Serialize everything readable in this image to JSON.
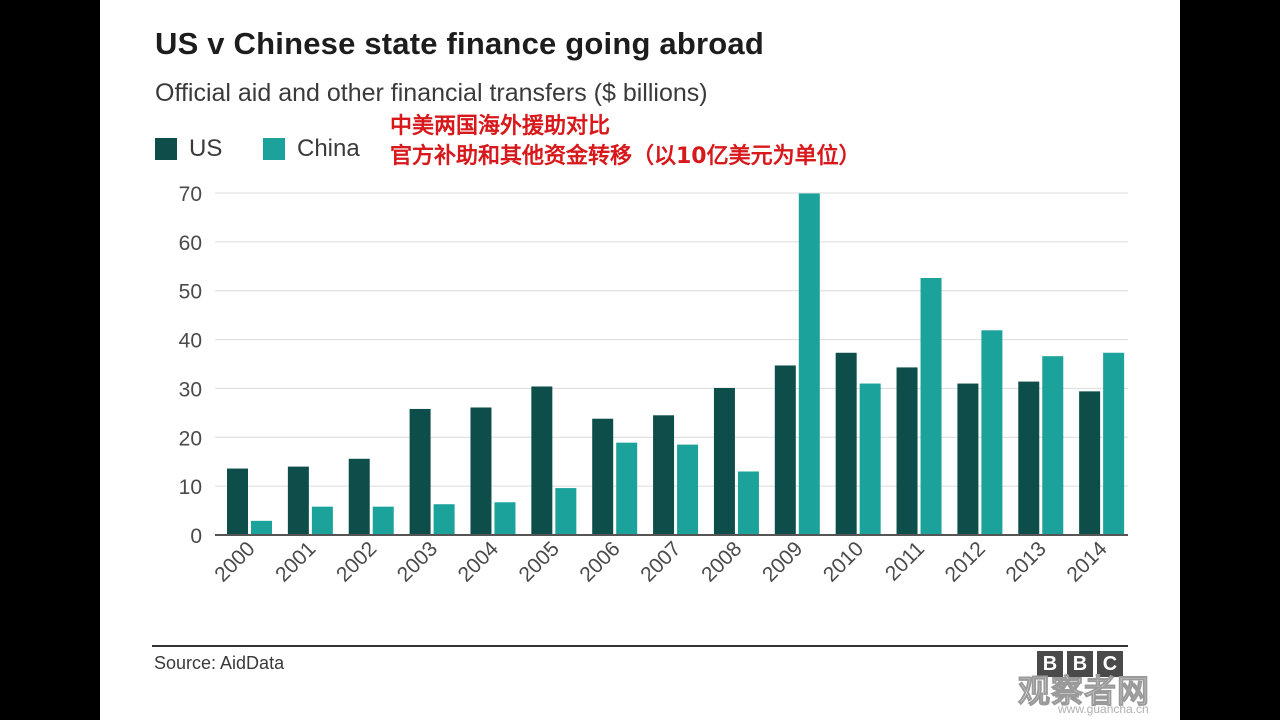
{
  "title": "US v Chinese state finance going abroad",
  "subtitle": "Official aid and other financial transfers ($ billions)",
  "legend": [
    {
      "label": "US",
      "color": "#0d4e4b"
    },
    {
      "label": "China",
      "color": "#1ba29a"
    }
  ],
  "chinese_note": {
    "line1": "中美两国海外援助对比",
    "line2": "官方补助和其他资金转移（以10亿美元为单位）"
  },
  "source": "Source: AidData",
  "logo": {
    "letters": [
      "B",
      "B",
      "C"
    ]
  },
  "watermark": {
    "text": "观察者网",
    "url": "www.guancha.cn"
  },
  "chart_data": {
    "type": "bar",
    "categories": [
      "2000",
      "2001",
      "2002",
      "2003",
      "2004",
      "2005",
      "2006",
      "2007",
      "2008",
      "2009",
      "2010",
      "2011",
      "2012",
      "2013",
      "2014"
    ],
    "series": [
      {
        "name": "US",
        "color": "#0d4e4b",
        "values": [
          13.6,
          14.0,
          15.6,
          25.8,
          26.1,
          30.4,
          23.8,
          24.5,
          30.1,
          34.7,
          37.3,
          34.3,
          31.0,
          31.4,
          29.4
        ]
      },
      {
        "name": "China",
        "color": "#1ba29a",
        "values": [
          2.9,
          5.8,
          5.8,
          6.3,
          6.7,
          9.6,
          18.9,
          18.5,
          13.0,
          69.9,
          31.0,
          52.6,
          41.9,
          36.6,
          37.3
        ]
      }
    ],
    "y_ticks": [
      0,
      10,
      20,
      30,
      40,
      50,
      60,
      70
    ],
    "ylim": [
      0,
      70
    ],
    "xlabel": "",
    "ylabel": "",
    "grid": true,
    "legend_position": "top-left"
  }
}
